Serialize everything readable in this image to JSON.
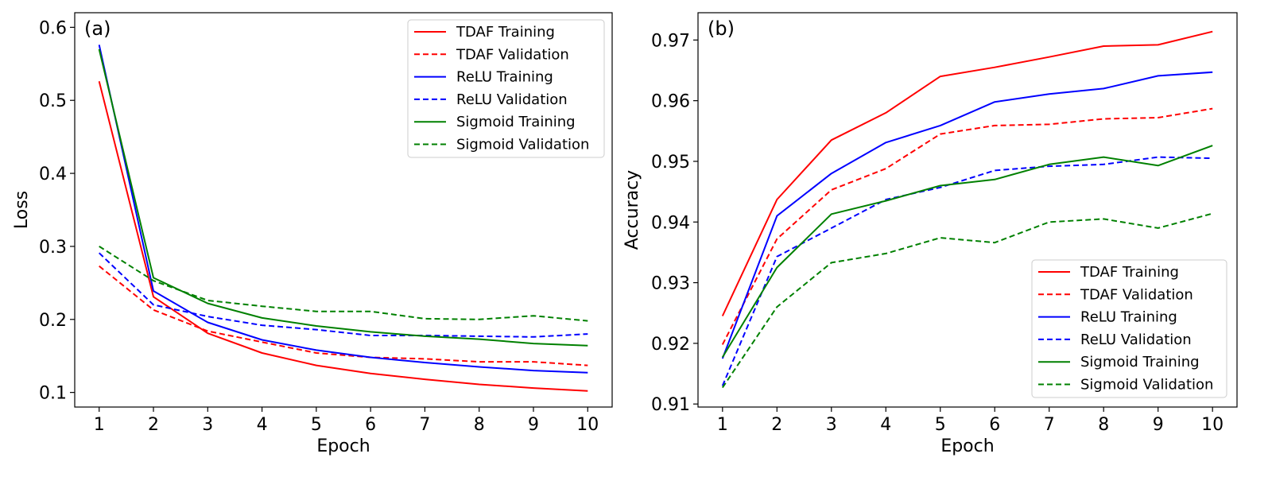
{
  "chart_data": [
    {
      "type": "line",
      "panel_label": "(a)",
      "xlabel": "Epoch",
      "ylabel": "Loss",
      "xlim": [
        0.55,
        10.45
      ],
      "ylim": [
        0.08,
        0.62
      ],
      "x": [
        1,
        2,
        3,
        4,
        5,
        6,
        7,
        8,
        9,
        10
      ],
      "x_tick_labels": [
        "1",
        "2",
        "3",
        "4",
        "5",
        "6",
        "7",
        "8",
        "9",
        "10"
      ],
      "y_ticks": [
        0.1,
        0.2,
        0.3,
        0.4,
        0.5,
        0.6
      ],
      "y_tick_labels": [
        "0.1",
        "0.2",
        "0.3",
        "0.4",
        "0.5",
        "0.6"
      ],
      "legend_position": "top-right",
      "grid": false,
      "series": [
        {
          "name": "TDAF Training",
          "color": "#ff0000",
          "dash": "solid",
          "values": [
            0.526,
            0.231,
            0.181,
            0.154,
            0.137,
            0.126,
            0.118,
            0.111,
            0.106,
            0.102
          ]
        },
        {
          "name": "TDAF Validation",
          "color": "#ff0000",
          "dash": "dashed",
          "values": [
            0.273,
            0.213,
            0.184,
            0.169,
            0.154,
            0.148,
            0.146,
            0.142,
            0.142,
            0.137
          ]
        },
        {
          "name": "ReLU Training",
          "color": "#0000ff",
          "dash": "solid",
          "values": [
            0.576,
            0.239,
            0.196,
            0.172,
            0.158,
            0.148,
            0.141,
            0.135,
            0.13,
            0.127
          ]
        },
        {
          "name": "ReLU Validation",
          "color": "#0000ff",
          "dash": "dashed",
          "values": [
            0.291,
            0.22,
            0.204,
            0.192,
            0.186,
            0.178,
            0.178,
            0.177,
            0.176,
            0.18
          ]
        },
        {
          "name": "Sigmoid Training",
          "color": "#008000",
          "dash": "solid",
          "values": [
            0.57,
            0.257,
            0.222,
            0.202,
            0.191,
            0.183,
            0.177,
            0.173,
            0.167,
            0.164
          ]
        },
        {
          "name": "Sigmoid Validation",
          "color": "#008000",
          "dash": "dashed",
          "values": [
            0.3,
            0.253,
            0.226,
            0.218,
            0.211,
            0.211,
            0.201,
            0.2,
            0.205,
            0.198
          ]
        }
      ]
    },
    {
      "type": "line",
      "panel_label": "(b)",
      "xlabel": "Epoch",
      "ylabel": "Accuracy",
      "xlim": [
        0.55,
        10.45
      ],
      "ylim": [
        0.9095,
        0.9745
      ],
      "x": [
        1,
        2,
        3,
        4,
        5,
        6,
        7,
        8,
        9,
        10
      ],
      "x_tick_labels": [
        "1",
        "2",
        "3",
        "4",
        "5",
        "6",
        "7",
        "8",
        "9",
        "10"
      ],
      "y_ticks": [
        0.91,
        0.92,
        0.93,
        0.94,
        0.95,
        0.96,
        0.97
      ],
      "y_tick_labels": [
        "0.91",
        "0.92",
        "0.93",
        "0.94",
        "0.95",
        "0.96",
        "0.97"
      ],
      "legend_position": "bottom-right",
      "grid": false,
      "series": [
        {
          "name": "TDAF Training",
          "color": "#ff0000",
          "dash": "solid",
          "values": [
            0.9245,
            0.9437,
            0.9535,
            0.958,
            0.964,
            0.9655,
            0.9672,
            0.969,
            0.9692,
            0.9714
          ]
        },
        {
          "name": "TDAF Validation",
          "color": "#ff0000",
          "dash": "dashed",
          "values": [
            0.9198,
            0.9372,
            0.9453,
            0.9488,
            0.9545,
            0.9559,
            0.9561,
            0.957,
            0.9572,
            0.9587
          ]
        },
        {
          "name": "ReLU Training",
          "color": "#0000ff",
          "dash": "solid",
          "values": [
            0.9175,
            0.941,
            0.948,
            0.9531,
            0.9559,
            0.9598,
            0.9611,
            0.962,
            0.9641,
            0.9647
          ]
        },
        {
          "name": "ReLU Validation",
          "color": "#0000ff",
          "dash": "dashed",
          "values": [
            0.913,
            0.9343,
            0.939,
            0.9437,
            0.9457,
            0.9485,
            0.9492,
            0.9495,
            0.9507,
            0.9505
          ]
        },
        {
          "name": "Sigmoid Training",
          "color": "#008000",
          "dash": "solid",
          "values": [
            0.9177,
            0.9325,
            0.9413,
            0.9435,
            0.946,
            0.947,
            0.9495,
            0.9507,
            0.9493,
            0.9526
          ]
        },
        {
          "name": "Sigmoid Validation",
          "color": "#008000",
          "dash": "dashed",
          "values": [
            0.9127,
            0.926,
            0.9333,
            0.9348,
            0.9374,
            0.9366,
            0.94,
            0.9405,
            0.939,
            0.9414
          ]
        }
      ]
    }
  ]
}
